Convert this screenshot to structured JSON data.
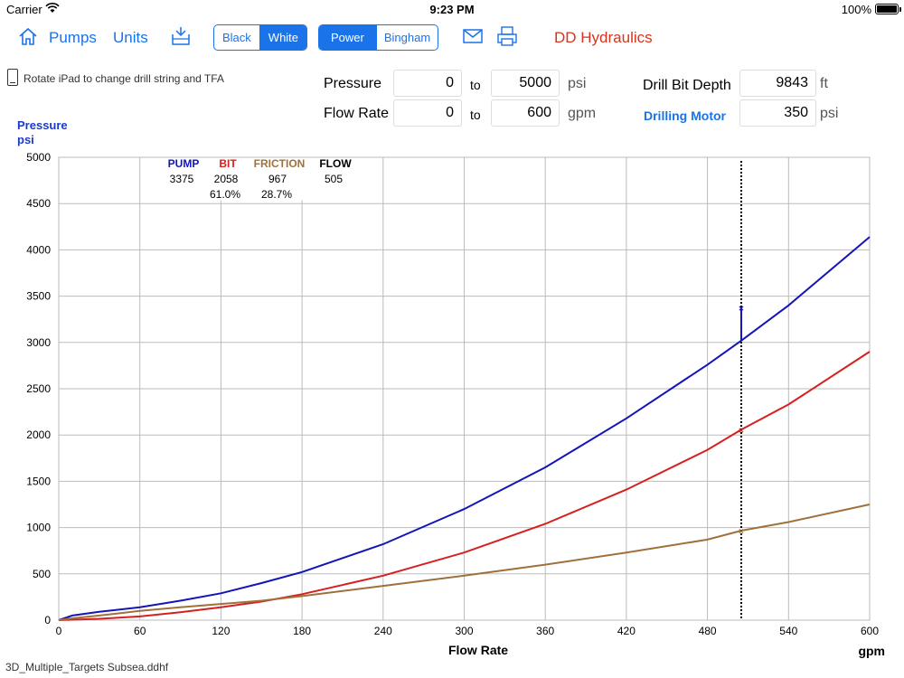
{
  "status": {
    "carrier": "Carrier",
    "time": "9:23 PM",
    "battery": "100%"
  },
  "toolbar": {
    "pumps": "Pumps",
    "units": "Units",
    "theme": [
      "Black",
      "White"
    ],
    "theme_active": "White",
    "mode": [
      "Power",
      "Bingham"
    ],
    "mode_active": "Power",
    "brand": "DD Hydraulics"
  },
  "note": "Rotate iPad to change drill string and TFA",
  "inputs": {
    "pressure_label": "Pressure",
    "pressure_from": "0",
    "pressure_to": "5000",
    "pressure_unit": "psi",
    "flow_label": "Flow Rate",
    "flow_from": "0",
    "flow_to": "600",
    "flow_unit": "gpm",
    "to": "to",
    "depth_label": "Drill Bit Depth",
    "depth_value": "9843",
    "depth_unit": "ft",
    "motor_label": "Drilling Motor",
    "motor_value": "350",
    "motor_unit": "psi"
  },
  "colors": {
    "pump": "#1414b8",
    "bit": "#d62020",
    "friction": "#a0703c",
    "accent": "#1a73e8",
    "brand": "#d7341d"
  },
  "chart_data": {
    "type": "line",
    "ylabel": [
      "Pressure",
      "psi"
    ],
    "xlabel": "Flow Rate",
    "xunit": "gpm",
    "xlim": [
      0,
      600
    ],
    "ylim": [
      0,
      5000
    ],
    "xticks": [
      0,
      60,
      120,
      180,
      240,
      300,
      360,
      420,
      480,
      540,
      600
    ],
    "yticks": [
      0,
      500,
      1000,
      1500,
      2000,
      2500,
      3000,
      3500,
      4000,
      4500,
      5000
    ],
    "x": [
      0,
      10,
      30,
      60,
      90,
      120,
      150,
      180,
      240,
      300,
      360,
      420,
      480,
      505,
      540,
      600
    ],
    "series": [
      {
        "name": "PUMP",
        "key": "pump",
        "values": [
          0,
          50,
          90,
          140,
          210,
          290,
          400,
          520,
          820,
          1200,
          1650,
          2180,
          2760,
          3020,
          3400,
          4140
        ]
      },
      {
        "name": "BIT",
        "key": "bit",
        "values": [
          0,
          5,
          15,
          40,
          85,
          140,
          200,
          280,
          480,
          730,
          1040,
          1410,
          1840,
          2058,
          2330,
          2900
        ]
      },
      {
        "name": "FRICTION",
        "key": "friction",
        "values": [
          0,
          20,
          50,
          100,
          140,
          175,
          210,
          260,
          370,
          480,
          600,
          730,
          870,
          967,
          1060,
          1250
        ]
      }
    ],
    "marker": {
      "flow": 505,
      "pump_with_motor": 3375
    },
    "readout": {
      "headers": [
        "PUMP",
        "BIT",
        "FRICTION",
        "FLOW"
      ],
      "values": [
        "3375",
        "2058",
        "967",
        "505"
      ],
      "percents": [
        "",
        "61.0%",
        "28.7%",
        ""
      ]
    }
  },
  "file": "3D_Multiple_Targets Subsea.ddhf"
}
